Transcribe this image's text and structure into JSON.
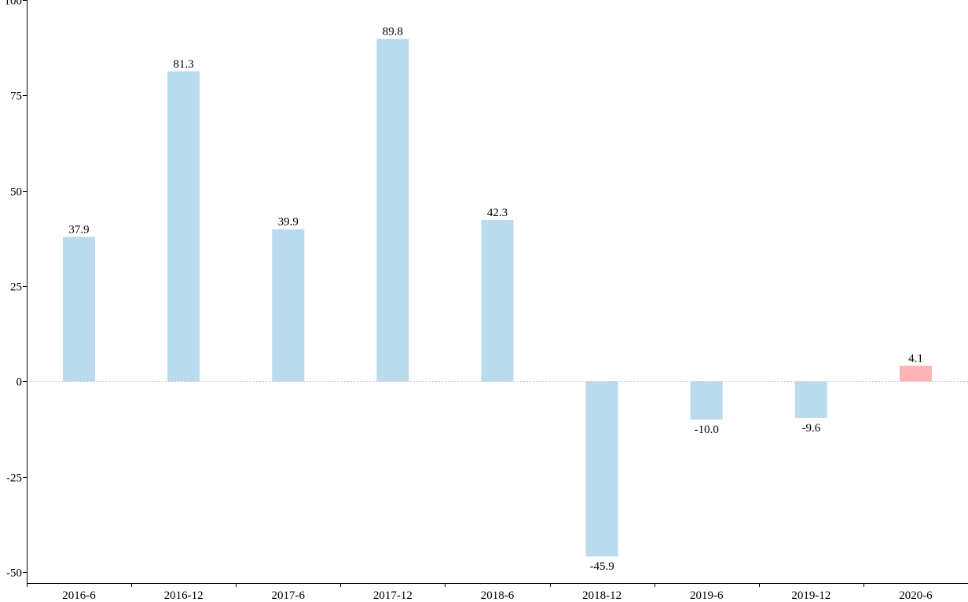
{
  "chart_data": {
    "type": "bar",
    "title": "",
    "xlabel": "",
    "ylabel": "",
    "categories": [
      "2016-6",
      "2016-12",
      "2017-6",
      "2017-12",
      "2018-6",
      "2018-12",
      "2019-6",
      "2019-12",
      "2020-6"
    ],
    "values": [
      37.9,
      81.3,
      39.9,
      89.8,
      42.3,
      -45.9,
      -10.0,
      -9.6,
      4.1
    ],
    "value_labels": [
      "37.9",
      "81.3",
      "39.9",
      "89.8",
      "42.3",
      "-45.9",
      "-10.0",
      "-9.6",
      "4.1"
    ],
    "ylim": [
      -52,
      100
    ],
    "yticks": [
      100,
      75,
      50,
      25,
      0,
      -25,
      -50
    ],
    "ytick_labels": [
      "100",
      "75",
      "50",
      "25",
      "0",
      "-25",
      "-50"
    ],
    "bar_colors": [
      "#badaee",
      "#badaee",
      "#badaee",
      "#badaee",
      "#badaee",
      "#badaee",
      "#badaee",
      "#badaee",
      "#fdb4b4"
    ],
    "grid": false,
    "zero_line": true,
    "legend": "none"
  }
}
